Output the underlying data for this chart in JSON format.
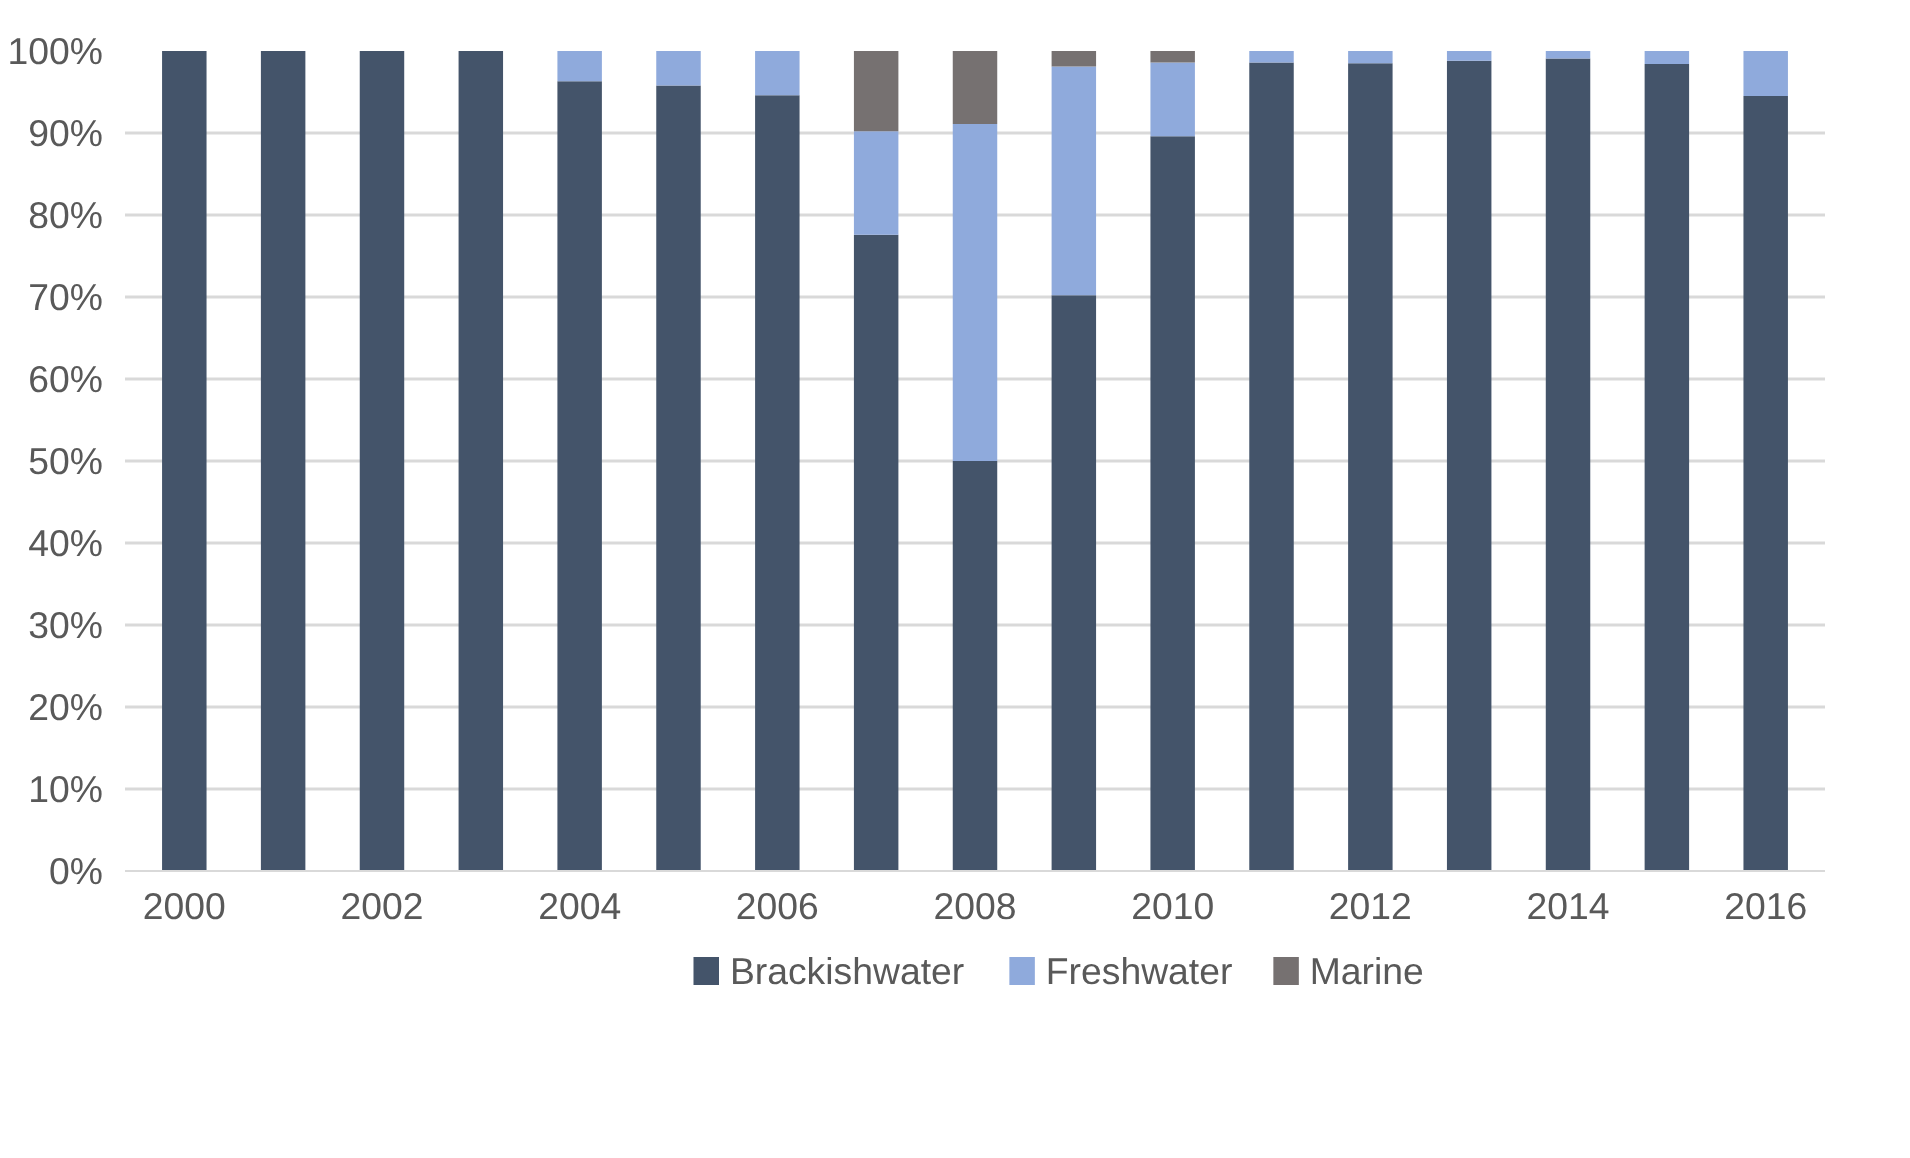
{
  "chart_data": {
    "type": "bar",
    "stacked": true,
    "x": [
      2000,
      2001,
      2002,
      2003,
      2004,
      2005,
      2006,
      2007,
      2008,
      2009,
      2010,
      2011,
      2012,
      2013,
      2014,
      2015,
      2016
    ],
    "series": [
      {
        "name": "Brackishwater",
        "color": "#44546a",
        "values": [
          100,
          100,
          100,
          100,
          96.3,
          95.8,
          94.6,
          77.6,
          50,
          70.2,
          89.6,
          98.6,
          98.5,
          98.8,
          99.1,
          98.4,
          94.5
        ]
      },
      {
        "name": "Freshwater",
        "color": "#8faadc",
        "values": [
          0,
          0,
          0,
          0,
          3.7,
          4.2,
          5.4,
          12.6,
          41.1,
          27.9,
          9,
          1.4,
          1.5,
          1.2,
          0.9,
          1.6,
          5.5
        ]
      },
      {
        "name": "Marine",
        "color": "#767171",
        "values": [
          0,
          0,
          0,
          0,
          0,
          0,
          0,
          9.8,
          8.9,
          1.9,
          1.4,
          0,
          0,
          0,
          0,
          0,
          0
        ]
      }
    ],
    "xlim": [
      1999.4,
      2016.6
    ],
    "xticks": [
      2000,
      2002,
      2004,
      2006,
      2008,
      2010,
      2012,
      2014,
      2016
    ],
    "ylim": [
      0,
      100
    ],
    "yticks": [
      {
        "value": 0,
        "label": "0%"
      },
      {
        "value": 10,
        "label": "10%"
      },
      {
        "value": 20,
        "label": "20%"
      },
      {
        "value": 30,
        "label": "30%"
      },
      {
        "value": 40,
        "label": "40%"
      },
      {
        "value": 50,
        "label": "50%"
      },
      {
        "value": 60,
        "label": "60%"
      },
      {
        "value": 70,
        "label": "70%"
      },
      {
        "value": 80,
        "label": "80%"
      },
      {
        "value": 90,
        "label": "90%"
      },
      {
        "value": 100,
        "label": "100%"
      }
    ],
    "grid": "y",
    "legend": "bottom"
  }
}
